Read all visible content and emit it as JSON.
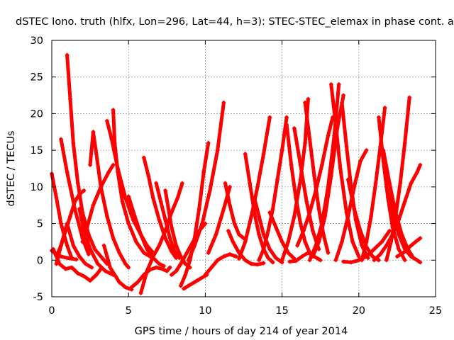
{
  "chart_data": {
    "type": "scatter",
    "title": "dSTEC Iono. truth (hlfx, Lon=296, Lat=44, h=3): STEC-STEC_elemax in phase cont. a",
    "xlabel": "GPS time / hours of day 214 of year 2014",
    "ylabel": "dSTEC  / TECUs",
    "xlim": [
      0,
      25
    ],
    "ylim": [
      -5,
      30
    ],
    "xticks": [
      0,
      5,
      10,
      15,
      20,
      25
    ],
    "yticks": [
      -5,
      0,
      5,
      10,
      15,
      20,
      25,
      30
    ],
    "grid": true,
    "marker": "+",
    "color": "#ff0000",
    "series": [
      {
        "x": [
          0.0,
          0.3,
          0.6,
          1.0,
          1.3
        ],
        "y": [
          11.8,
          8.5,
          5.0,
          2.0,
          0.3
        ]
      },
      {
        "x": [
          0.0,
          0.3,
          0.6,
          1.0,
          1.3,
          1.6
        ],
        "y": [
          1.3,
          0.8,
          0.5,
          0.3,
          0.2,
          0.1
        ]
      },
      {
        "x": [
          0.1,
          0.5,
          0.9,
          1.3,
          1.7,
          2.1,
          2.5,
          2.9,
          3.2
        ],
        "y": [
          1.5,
          -0.5,
          -1.2,
          -1.0,
          -1.8,
          -2.2,
          -2.8,
          -2.0,
          -1.2
        ]
      },
      {
        "x": [
          0.3,
          0.6,
          1.0,
          1.4,
          1.8,
          2.2,
          2.6
        ],
        "y": [
          -0.5,
          2.0,
          5.0,
          2.0,
          0.5,
          -0.5,
          -1.0
        ]
      },
      {
        "x": [
          0.6,
          1.0,
          1.5,
          2.0,
          2.4
        ],
        "y": [
          16.5,
          12.0,
          7.0,
          3.0,
          0.8
        ]
      },
      {
        "x": [
          1.0,
          1.2,
          1.4,
          1.7,
          2.0,
          2.4,
          2.8,
          3.2,
          3.6
        ],
        "y": [
          28.0,
          22.0,
          16.0,
          10.5,
          6.5,
          3.5,
          1.5,
          0.5,
          -0.5
        ]
      },
      {
        "x": [
          0.3,
          0.6,
          0.9,
          1.2,
          1.5,
          1.8,
          2.1
        ],
        "y": [
          0.5,
          2.0,
          4.0,
          6.0,
          8.0,
          9.0,
          9.5
        ]
      },
      {
        "x": [
          1.8,
          2.1,
          2.5,
          3.0,
          3.5,
          4.0
        ],
        "y": [
          7.0,
          4.0,
          1.5,
          -0.5,
          -1.5,
          -2.0
        ]
      },
      {
        "x": [
          2.5,
          2.7,
          2.9,
          3.2,
          3.6,
          4.0,
          4.4,
          4.8,
          5.0
        ],
        "y": [
          13.0,
          17.5,
          14.5,
          10.0,
          6.0,
          3.0,
          1.0,
          -0.5,
          -1.0
        ]
      },
      {
        "x": [
          2.0,
          2.3,
          2.7,
          3.2,
          3.7,
          4.0
        ],
        "y": [
          2.5,
          4.5,
          7.5,
          10.0,
          12.0,
          13.0
        ]
      },
      {
        "x": [
          3.6,
          3.9,
          4.3,
          4.8,
          5.3,
          5.8,
          6.2,
          6.6
        ],
        "y": [
          19.0,
          16.5,
          12.5,
          8.5,
          5.5,
          3.5,
          2.0,
          1.0
        ]
      },
      {
        "x": [
          4.0,
          4.1,
          4.3,
          4.6,
          5.0,
          5.5,
          6.0,
          6.4
        ],
        "y": [
          20.5,
          16.0,
          12.0,
          8.0,
          5.0,
          2.5,
          1.0,
          0.5
        ]
      },
      {
        "x": [
          3.4,
          3.6,
          3.8,
          4.1,
          4.4,
          4.8,
          5.2
        ],
        "y": [
          2.0,
          0.5,
          -1.0,
          -2.0,
          -3.0,
          -3.7,
          -4.0
        ]
      },
      {
        "x": [
          5.2,
          5.6,
          6.0,
          6.4,
          6.8,
          7.2,
          7.5,
          7.7
        ],
        "y": [
          -3.7,
          -3.0,
          -2.0,
          -1.3,
          -1.0,
          -1.2,
          -1.5,
          -1.0
        ]
      },
      {
        "x": [
          5.0,
          5.4,
          5.8,
          6.2,
          6.6,
          7.0,
          7.3
        ],
        "y": [
          8.7,
          6.0,
          3.5,
          1.5,
          0.3,
          -0.5,
          -0.8
        ]
      },
      {
        "x": [
          5.8,
          6.0,
          6.2,
          6.6,
          7.0,
          7.4,
          7.8,
          8.2,
          8.5
        ],
        "y": [
          -4.5,
          -3.0,
          -1.5,
          0.5,
          2.0,
          4.0,
          6.5,
          8.5,
          10.5
        ]
      },
      {
        "x": [
          6.0,
          6.3,
          6.6,
          7.0,
          7.4,
          7.8,
          8.1
        ],
        "y": [
          14.0,
          11.5,
          8.5,
          5.5,
          3.0,
          1.2,
          0.3
        ]
      },
      {
        "x": [
          6.8,
          7.1,
          7.4,
          7.7,
          8.0,
          8.3
        ],
        "y": [
          10.5,
          8.0,
          5.5,
          3.0,
          1.2,
          0.3
        ]
      },
      {
        "x": [
          7.4,
          7.6,
          7.8,
          8.1,
          8.4,
          8.7,
          9.0
        ],
        "y": [
          9.5,
          7.0,
          4.5,
          2.0,
          0.5,
          -0.5,
          -1.0
        ]
      },
      {
        "x": [
          7.8,
          8.1,
          8.4,
          8.8,
          9.2,
          9.6,
          10.0
        ],
        "y": [
          -2.0,
          -1.5,
          -0.5,
          1.0,
          2.5,
          4.0,
          5.0
        ]
      },
      {
        "x": [
          8.4,
          8.7,
          9.0,
          9.3,
          9.6,
          9.9,
          10.2
        ],
        "y": [
          -3.5,
          -2.0,
          0.0,
          3.0,
          7.0,
          12.0,
          16.0
        ]
      },
      {
        "x": [
          8.6,
          8.9,
          9.3,
          9.7,
          10.1
        ],
        "y": [
          -3.9,
          -3.5,
          -3.0,
          -2.5,
          -2.0
        ]
      },
      {
        "x": [
          10.0,
          10.4,
          10.8,
          11.2,
          11.6,
          12.0
        ],
        "y": [
          -2.0,
          -1.0,
          0.0,
          0.5,
          0.8,
          0.5
        ]
      },
      {
        "x": [
          8.9,
          9.3,
          9.8,
          10.3,
          10.8,
          11.2
        ],
        "y": [
          0.0,
          2.0,
          5.0,
          9.5,
          15.0,
          21.5
        ]
      },
      {
        "x": [
          10.2,
          10.7,
          11.2,
          11.6
        ],
        "y": [
          1.0,
          3.5,
          7.0,
          10.0
        ]
      },
      {
        "x": [
          11.3,
          11.6,
          11.9,
          12.2,
          12.5
        ],
        "y": [
          10.5,
          7.5,
          5.0,
          3.5,
          3.0
        ]
      },
      {
        "x": [
          11.5,
          11.8,
          12.2,
          12.6,
          13.0,
          13.4,
          13.8
        ],
        "y": [
          4.0,
          2.5,
          1.0,
          0.0,
          -0.5,
          -0.6,
          -0.4
        ]
      },
      {
        "x": [
          12.6,
          12.9,
          13.2,
          13.5,
          13.8,
          14.1,
          14.4
        ],
        "y": [
          14.5,
          10.5,
          6.5,
          3.5,
          1.5,
          0.3,
          -0.3
        ]
      },
      {
        "x": [
          12.2,
          12.6,
          13.0,
          13.4,
          13.8,
          14.2
        ],
        "y": [
          0.2,
          2.5,
          6.0,
          10.0,
          14.5,
          19.5
        ]
      },
      {
        "x": [
          13.2,
          13.5,
          13.8,
          14.2,
          14.6,
          15.0
        ],
        "y": [
          8.5,
          6.0,
          3.5,
          1.5,
          0.3,
          -0.3
        ]
      },
      {
        "x": [
          13.5,
          13.8,
          14.1,
          14.4,
          14.7,
          15.0,
          15.3
        ],
        "y": [
          0.0,
          1.5,
          4.0,
          7.0,
          11.0,
          15.0,
          19.5
        ]
      },
      {
        "x": [
          14.2,
          14.6,
          15.0,
          15.4,
          15.8
        ],
        "y": [
          6.5,
          4.5,
          2.5,
          1.0,
          0.2
        ]
      },
      {
        "x": [
          15.3,
          15.6,
          15.9,
          16.2,
          16.5,
          16.8
        ],
        "y": [
          18.5,
          13.0,
          8.5,
          5.0,
          2.5,
          1.0
        ]
      },
      {
        "x": [
          15.0,
          15.4,
          15.8,
          16.2,
          16.5,
          16.7
        ],
        "y": [
          0.0,
          2.5,
          6.0,
          11.0,
          16.0,
          22.0
        ]
      },
      {
        "x": [
          15.8,
          16.2,
          16.6,
          17.0,
          17.4
        ],
        "y": [
          18.0,
          13.0,
          8.0,
          4.0,
          1.5
        ]
      },
      {
        "x": [
          16.5,
          16.8,
          17.1,
          17.4,
          17.7,
          18.0
        ],
        "y": [
          21.5,
          16.5,
          11.5,
          7.0,
          3.5,
          1.0
        ]
      },
      {
        "x": [
          15.5,
          15.9,
          16.3,
          16.7,
          17.1,
          17.5
        ],
        "y": [
          -0.2,
          -0.1,
          0.5,
          1.0,
          0.5,
          0.0
        ]
      },
      {
        "x": [
          16.0,
          16.4,
          16.8,
          17.2,
          17.6,
          18.0,
          18.3
        ],
        "y": [
          2.0,
          4.0,
          6.5,
          9.5,
          13.0,
          17.0,
          19.5
        ]
      },
      {
        "x": [
          16.8,
          17.2,
          17.6,
          18.0,
          18.4,
          18.7
        ],
        "y": [
          0.0,
          2.0,
          5.0,
          10.0,
          17.0,
          24.0
        ]
      },
      {
        "x": [
          17.0,
          17.4,
          17.8,
          18.2,
          18.6,
          19.0
        ],
        "y": [
          0.5,
          2.5,
          6.0,
          11.5,
          18.0,
          22.5
        ]
      },
      {
        "x": [
          18.2,
          18.5,
          18.8,
          19.2,
          19.6,
          20.0
        ],
        "y": [
          24.0,
          18.5,
          12.5,
          6.5,
          2.5,
          0.5
        ]
      },
      {
        "x": [
          18.9,
          19.2,
          19.5,
          19.8,
          20.2,
          20.6
        ],
        "y": [
          21.5,
          15.5,
          10.0,
          5.5,
          2.0,
          0.3
        ]
      },
      {
        "x": [
          18.5,
          18.9,
          19.3,
          19.7,
          20.1,
          20.5
        ],
        "y": [
          0.0,
          2.5,
          6.0,
          10.0,
          13.5,
          15.0
        ]
      },
      {
        "x": [
          19.3,
          19.7,
          20.1,
          20.5,
          20.9,
          21.3
        ],
        "y": [
          11.0,
          7.0,
          4.0,
          1.8,
          0.5,
          0.0
        ]
      },
      {
        "x": [
          20.2,
          20.5,
          20.8,
          21.1,
          21.4,
          21.7
        ],
        "y": [
          0.0,
          2.5,
          6.0,
          10.5,
          15.5,
          20.8
        ]
      },
      {
        "x": [
          21.3,
          21.6,
          21.9,
          22.2,
          22.6,
          23.0
        ],
        "y": [
          19.5,
          13.5,
          8.5,
          4.5,
          1.5,
          0.0
        ]
      },
      {
        "x": [
          21.6,
          22.0,
          22.4,
          22.8,
          23.2,
          23.5
        ],
        "y": [
          15.0,
          10.5,
          6.5,
          3.5,
          1.5,
          0.5
        ]
      },
      {
        "x": [
          21.8,
          22.2,
          22.6,
          23.0,
          23.4,
          23.8,
          24.0
        ],
        "y": [
          10.0,
          6.5,
          3.5,
          1.5,
          0.5,
          0.0,
          -0.3
        ]
      },
      {
        "x": [
          21.8,
          22.1,
          22.4,
          22.7,
          23.0,
          23.3
        ],
        "y": [
          0.0,
          2.5,
          6.0,
          10.5,
          16.0,
          22.2
        ]
      },
      {
        "x": [
          21.0,
          21.4,
          21.8,
          22.2,
          22.6,
          23.0,
          23.4,
          23.8,
          24.0
        ],
        "y": [
          0.0,
          0.8,
          2.0,
          3.5,
          5.5,
          8.0,
          10.5,
          12.0,
          13.0
        ]
      },
      {
        "x": [
          22.5,
          22.9,
          23.3,
          23.7,
          24.0
        ],
        "y": [
          0.5,
          1.0,
          1.8,
          2.5,
          3.0
        ]
      },
      {
        "x": [
          19.0,
          19.5,
          20.0,
          20.5,
          21.0,
          21.5,
          22.0
        ],
        "y": [
          -0.2,
          -0.3,
          0.0,
          0.5,
          1.5,
          2.5,
          4.0
        ]
      }
    ]
  }
}
